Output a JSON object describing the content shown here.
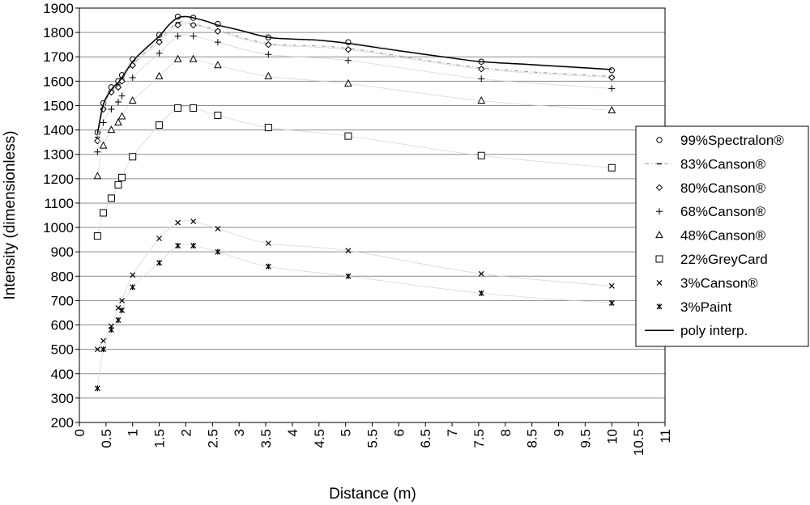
{
  "chart_data": {
    "type": "scatter",
    "title": "",
    "xlabel": "Distance (m)",
    "ylabel": "Intensity (dimensionless)",
    "xlim": [
      0,
      11
    ],
    "ylim": [
      200,
      1900
    ],
    "grid": "horizontal",
    "legend_position": "right",
    "x_ticks": [
      "0",
      "0.5",
      "1",
      "1.5",
      "2",
      "2.5",
      "3",
      "3.5",
      "4",
      "4.5",
      "5",
      "5.5",
      "6",
      "6.5",
      "7",
      "7.5",
      "8",
      "8.5",
      "9",
      "9.5",
      "10",
      "10.5",
      "11"
    ],
    "y_ticks": [
      "200",
      "300",
      "400",
      "500",
      "600",
      "700",
      "800",
      "900",
      "1000",
      "1100",
      "1200",
      "1300",
      "1400",
      "1500",
      "1600",
      "1700",
      "1800",
      "1900"
    ],
    "series": [
      {
        "name": "99%Spectralon®",
        "marker": "circle",
        "x": [
          0.34,
          0.45,
          0.6,
          0.73,
          0.8,
          1.0,
          1.5,
          1.85,
          2.14,
          2.6,
          3.55,
          5.05,
          7.55,
          10.0
        ],
        "y": [
          1390,
          1510,
          1575,
          1600,
          1625,
          1690,
          1790,
          1865,
          1860,
          1835,
          1780,
          1760,
          1680,
          1645
        ]
      },
      {
        "name": "83%Canson®",
        "marker": "dash",
        "x": [
          0.34,
          0.45,
          0.6,
          0.73,
          0.8,
          1.0,
          1.5,
          1.85,
          2.14,
          2.6,
          3.55,
          5.05,
          7.55,
          10.0
        ],
        "y": [
          1370,
          1490,
          1560,
          1585,
          1610,
          1670,
          1770,
          1840,
          1835,
          1810,
          1755,
          1735,
          1655,
          1620
        ]
      },
      {
        "name": "80%Canson®",
        "marker": "diamond",
        "x": [
          0.34,
          0.45,
          0.6,
          0.73,
          0.8,
          1.0,
          1.5,
          1.85,
          2.14,
          2.6,
          3.55,
          5.05,
          7.55,
          10.0
        ],
        "y": [
          1355,
          1485,
          1555,
          1575,
          1600,
          1665,
          1760,
          1830,
          1830,
          1805,
          1750,
          1730,
          1650,
          1615
        ]
      },
      {
        "name": "68%Canson®",
        "marker": "plus",
        "x": [
          0.34,
          0.45,
          0.6,
          0.73,
          0.8,
          1.0,
          1.5,
          1.85,
          2.14,
          2.6,
          3.55,
          5.05,
          7.55,
          10.0
        ],
        "y": [
          1310,
          1430,
          1485,
          1515,
          1540,
          1615,
          1715,
          1785,
          1785,
          1760,
          1710,
          1685,
          1610,
          1570
        ]
      },
      {
        "name": "48%Canson®",
        "marker": "triangle",
        "x": [
          0.34,
          0.45,
          0.6,
          0.73,
          0.8,
          1.0,
          1.5,
          1.85,
          2.14,
          2.6,
          3.55,
          5.05,
          7.55,
          10.0
        ],
        "y": [
          1210,
          1335,
          1400,
          1430,
          1455,
          1520,
          1620,
          1690,
          1690,
          1665,
          1620,
          1590,
          1520,
          1480
        ]
      },
      {
        "name": "22%GreyCard",
        "marker": "square",
        "x": [
          0.34,
          0.45,
          0.6,
          0.73,
          0.8,
          1.0,
          1.5,
          1.85,
          2.14,
          2.6,
          3.55,
          5.05,
          7.55,
          10.0
        ],
        "y": [
          965,
          1060,
          1120,
          1175,
          1205,
          1290,
          1420,
          1490,
          1490,
          1460,
          1410,
          1375,
          1295,
          1245
        ]
      },
      {
        "name": "3%Canson®",
        "marker": "x",
        "x": [
          0.34,
          0.45,
          0.6,
          0.73,
          0.8,
          1.0,
          1.5,
          1.85,
          2.14,
          2.6,
          3.55,
          5.05,
          7.55,
          10.0
        ],
        "y": [
          500,
          535,
          595,
          670,
          700,
          805,
          955,
          1020,
          1025,
          995,
          935,
          905,
          810,
          760
        ]
      },
      {
        "name": "3%Paint",
        "marker": "asterisk",
        "x": [
          0.34,
          0.45,
          0.6,
          0.73,
          0.8,
          1.0,
          1.5,
          1.85,
          2.14,
          2.6,
          3.55,
          5.05,
          7.55,
          10.0
        ],
        "y": [
          340,
          500,
          580,
          620,
          660,
          755,
          855,
          925,
          925,
          900,
          840,
          800,
          730,
          690
        ]
      },
      {
        "name": "poly interp.",
        "marker": "line",
        "x": [
          0.34,
          0.45,
          0.6,
          0.73,
          0.8,
          1.0,
          1.2,
          1.5,
          1.7,
          1.85,
          2.0,
          2.14,
          2.4,
          2.6,
          3.0,
          3.55,
          4.0,
          4.5,
          5.05,
          6.0,
          7.0,
          7.55,
          8.5,
          10.0
        ],
        "y": [
          1385,
          1505,
          1565,
          1595,
          1615,
          1680,
          1725,
          1785,
          1835,
          1860,
          1865,
          1860,
          1845,
          1830,
          1810,
          1780,
          1773,
          1768,
          1755,
          1725,
          1695,
          1680,
          1668,
          1648
        ]
      }
    ]
  }
}
